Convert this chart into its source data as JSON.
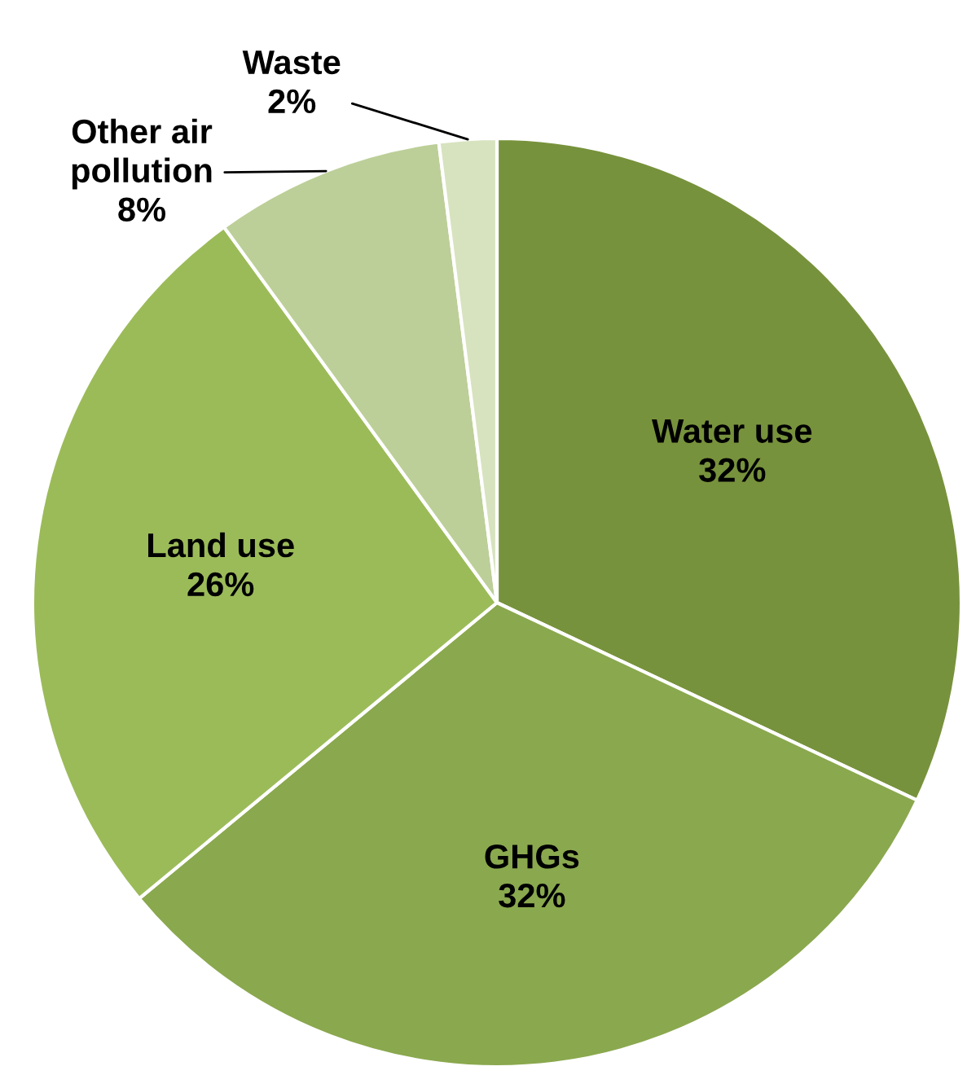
{
  "chart_data": {
    "type": "pie",
    "categories": [
      "Water use",
      "GHGs",
      "Land use",
      "Other air\npollution",
      "Waste"
    ],
    "values": [
      32,
      32,
      26,
      8,
      2
    ],
    "value_labels": [
      "32%",
      "32%",
      "26%",
      "8%",
      "2%"
    ],
    "colors": [
      "#77923c",
      "#8aa84e",
      "#9bbb59",
      "#bccf98",
      "#d7e3bf"
    ],
    "legend": false
  }
}
